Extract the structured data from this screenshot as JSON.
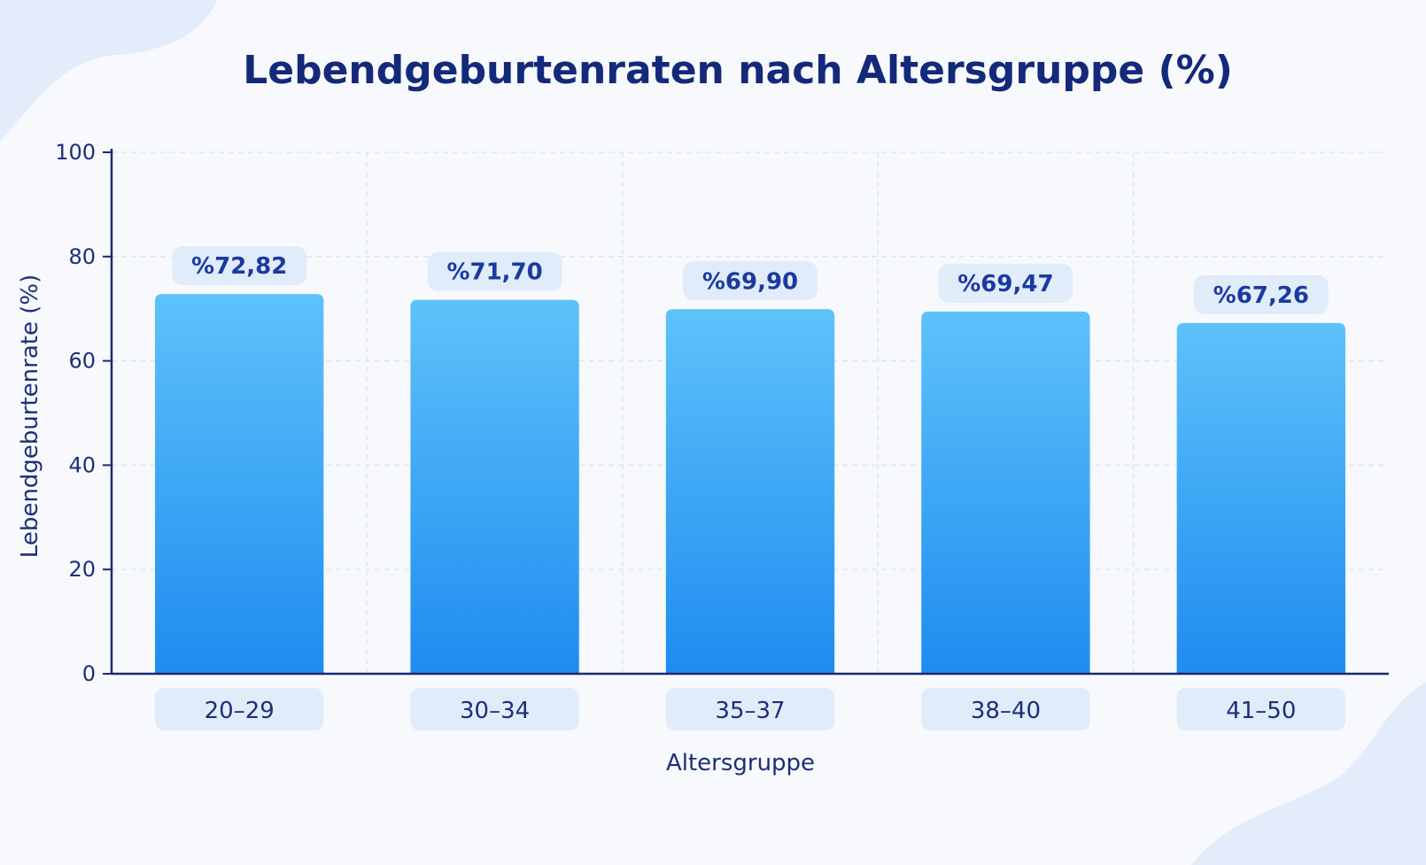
{
  "chart_data": {
    "type": "bar",
    "title": "Lebendgeburtenraten nach Altersgruppe (%)",
    "xlabel": "Altersgruppe",
    "ylabel": "Lebendgeburtenrate (%)",
    "ylim": [
      0,
      100
    ],
    "yticks": [
      0,
      20,
      40,
      60,
      80,
      100
    ],
    "categories": [
      "20–29",
      "30–34",
      "35–37",
      "38–40",
      "41–50"
    ],
    "values": [
      72.82,
      71.7,
      69.9,
      69.47,
      67.26
    ],
    "value_labels": [
      "%72,82",
      "%71,70",
      "%69,90",
      "%69,47",
      "%67,26"
    ],
    "grid": true,
    "legend": "none"
  },
  "colors": {
    "bar_top": "#5ec2fa",
    "bar_bottom": "#1e8cf0",
    "text": "#1d2f78",
    "title": "#14297a",
    "badge": "#e1ecfb",
    "grid": "#dde7f5",
    "axis": "#1b2a6b"
  }
}
